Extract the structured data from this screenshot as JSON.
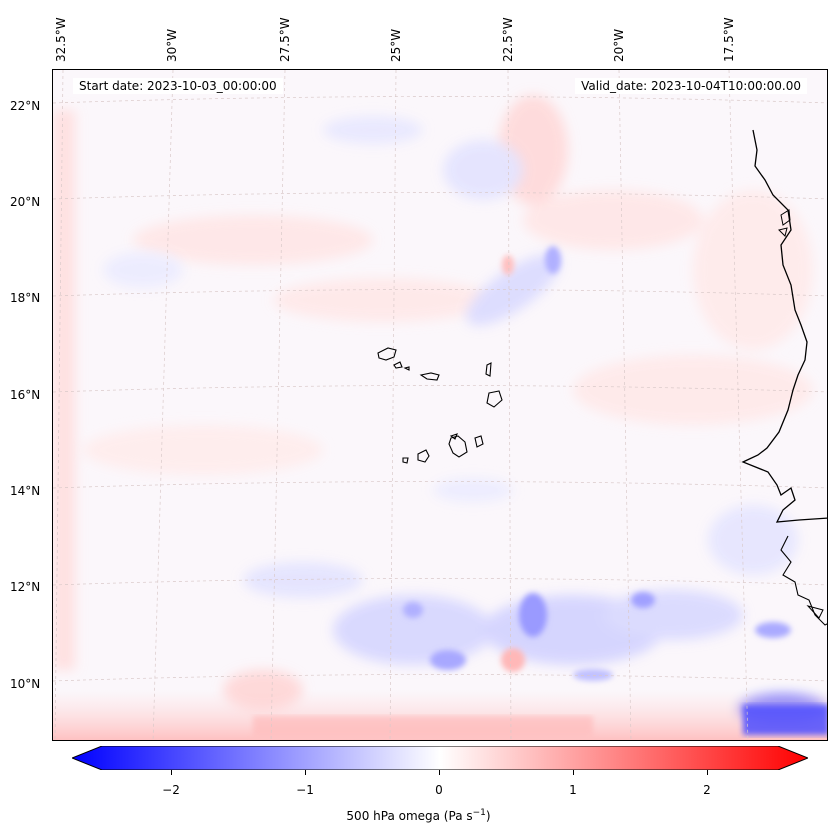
{
  "map": {
    "start_date": "Start date: 2023-10-03_00:00:00",
    "valid_date": "Valid_date: 2023-10-04T10:00:00.00",
    "lon_labels": [
      "32.5°W",
      "30°W",
      "27.5°W",
      "25°W",
      "22.5°W",
      "20°W",
      "17.5°W"
    ],
    "lat_labels": [
      "22°N",
      "20°N",
      "18°N",
      "16°N",
      "14°N",
      "12°N",
      "10°N"
    ]
  },
  "colorbar": {
    "label": "500 hPa omega (Pa s",
    "label_sup": "−1",
    "label_close": ")",
    "ticks": [
      "−2",
      "−1",
      "0",
      "1",
      "2"
    ],
    "colors": {
      "min": "#0000ff",
      "mid": "#ffffff",
      "max": "#ff0000"
    }
  }
}
